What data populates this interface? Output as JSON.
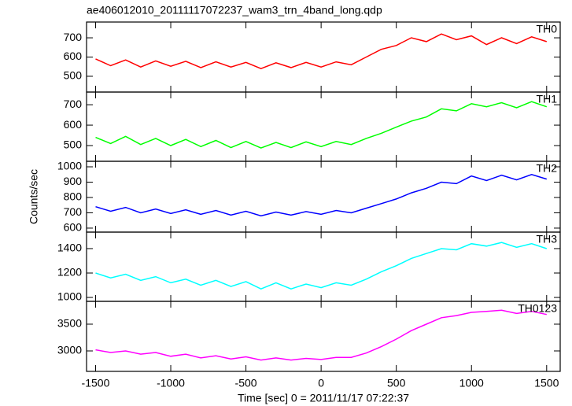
{
  "chart_data": {
    "type": "line",
    "title": "ae406012010_20111117072237_wam3_trn_4band_long.qdp",
    "x_label": "Time [sec] 0 = 2011/11/17 07:22:37",
    "y_label": "Counts/sec",
    "xlim": [
      -1560,
      1590
    ],
    "xticks": [
      -1500,
      -1000,
      -500,
      0,
      500,
      1000,
      1500
    ],
    "x": [
      -1500,
      -1400,
      -1300,
      -1200,
      -1100,
      -1000,
      -900,
      -800,
      -700,
      -600,
      -500,
      -400,
      -300,
      -200,
      -100,
      0,
      100,
      200,
      300,
      400,
      500,
      600,
      700,
      800,
      900,
      1000,
      1100,
      1200,
      1300,
      1400,
      1500
    ],
    "series": [
      {
        "name": "TH0",
        "color": "#ff0000",
        "ylim": [
          418,
          782
        ],
        "yticks": [
          500,
          600,
          700
        ],
        "values": [
          590,
          555,
          585,
          548,
          580,
          552,
          578,
          545,
          575,
          548,
          572,
          540,
          570,
          545,
          572,
          548,
          575,
          560,
          600,
          640,
          660,
          700,
          680,
          720,
          690,
          710,
          665,
          700,
          670,
          705,
          680
        ]
      },
      {
        "name": "TH1",
        "color": "#00ff00",
        "ylim": [
          423,
          762
        ],
        "yticks": [
          500,
          600,
          700
        ],
        "values": [
          540,
          510,
          545,
          505,
          535,
          500,
          530,
          495,
          525,
          490,
          520,
          488,
          515,
          490,
          518,
          495,
          520,
          505,
          535,
          560,
          590,
          620,
          640,
          680,
          670,
          705,
          690,
          710,
          685,
          715,
          690
        ]
      },
      {
        "name": "TH2",
        "color": "#0000ff",
        "ylim": [
          574,
          1036
        ],
        "yticks": [
          600,
          700,
          800,
          900,
          1000
        ],
        "values": [
          740,
          710,
          735,
          700,
          725,
          695,
          720,
          690,
          715,
          685,
          710,
          680,
          705,
          685,
          708,
          690,
          715,
          700,
          730,
          760,
          790,
          830,
          860,
          900,
          890,
          940,
          910,
          945,
          915,
          950,
          920
        ]
      },
      {
        "name": "TH3",
        "color": "#00ffff",
        "ylim": [
          968,
          1535
        ],
        "yticks": [
          1000,
          1200,
          1400
        ],
        "values": [
          1200,
          1160,
          1190,
          1140,
          1170,
          1120,
          1150,
          1100,
          1140,
          1090,
          1130,
          1070,
          1120,
          1070,
          1110,
          1080,
          1120,
          1100,
          1150,
          1210,
          1260,
          1320,
          1360,
          1400,
          1390,
          1440,
          1420,
          1450,
          1410,
          1440,
          1400
        ]
      },
      {
        "name": "TH0123",
        "color": "#ff00ff",
        "ylim": [
          2618,
          3926
        ],
        "yticks": [
          3000,
          3500
        ],
        "values": [
          3020,
          2970,
          3000,
          2940,
          2970,
          2900,
          2940,
          2870,
          2910,
          2850,
          2890,
          2830,
          2870,
          2830,
          2860,
          2840,
          2880,
          2880,
          2960,
          3080,
          3220,
          3380,
          3500,
          3620,
          3660,
          3720,
          3740,
          3760,
          3700,
          3740,
          3680
        ]
      }
    ]
  }
}
